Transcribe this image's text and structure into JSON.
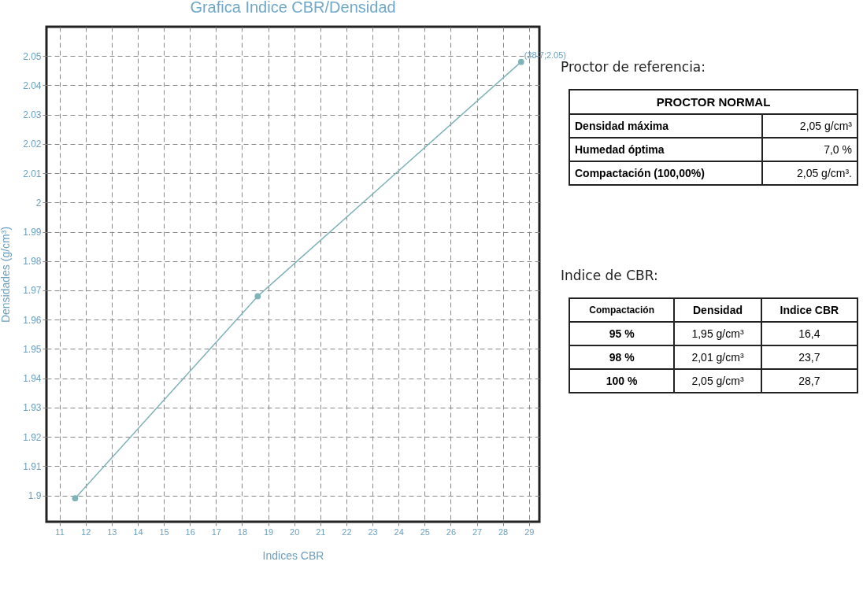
{
  "chart_data": [
    {
      "type": "line",
      "title": "Grafica Indice CBR/Densidad",
      "xlabel": "Indices CBR",
      "ylabel": "Densidades (g/cm³)",
      "x": [
        11.6,
        18.6,
        28.7
      ],
      "series": [
        {
          "color": "#7fb3b8",
          "values": [
            1.899,
            1.968,
            2.048
          ]
        }
      ],
      "xlim": [
        10.5,
        29.4
      ],
      "xticks": [
        11,
        12,
        13,
        14,
        15,
        16,
        17,
        18,
        19,
        20,
        21,
        22,
        23,
        24,
        25,
        26,
        27,
        28,
        29
      ],
      "ylim": [
        1.891,
        2.06
      ],
      "yticks": [
        1.9,
        1.91,
        1.92,
        1.93,
        1.94,
        1.95,
        1.96,
        1.97,
        1.98,
        1.99,
        2,
        2.01,
        2.02,
        2.03,
        2.04,
        2.05
      ],
      "grid": true,
      "marker": "circle",
      "line_style": "solid",
      "annotations": [
        {
          "text": "(28.7;2.05)",
          "x": 28.7,
          "y": 2.048
        }
      ]
    },
    {
      "type": "other",
      "title": "Proctor de referencia:",
      "annotations": [
        "PROCTOR NORMAL",
        "Densidad máxima",
        "2,05 g/cm³",
        "Humedad óptima",
        "7,0 %",
        "Compactación (100,00%)",
        "2,05 g/cm³."
      ]
    },
    {
      "type": "other",
      "title": "Indice de CBR:",
      "annotations": [
        "Compactación",
        "Densidad",
        "Indice CBR",
        "95 %",
        "1,95 g/cm³",
        "16,4",
        "98 %",
        "2,01 g/cm³",
        "23,7",
        "100 %",
        "2,05 g/cm³",
        "28,7"
      ]
    }
  ]
}
